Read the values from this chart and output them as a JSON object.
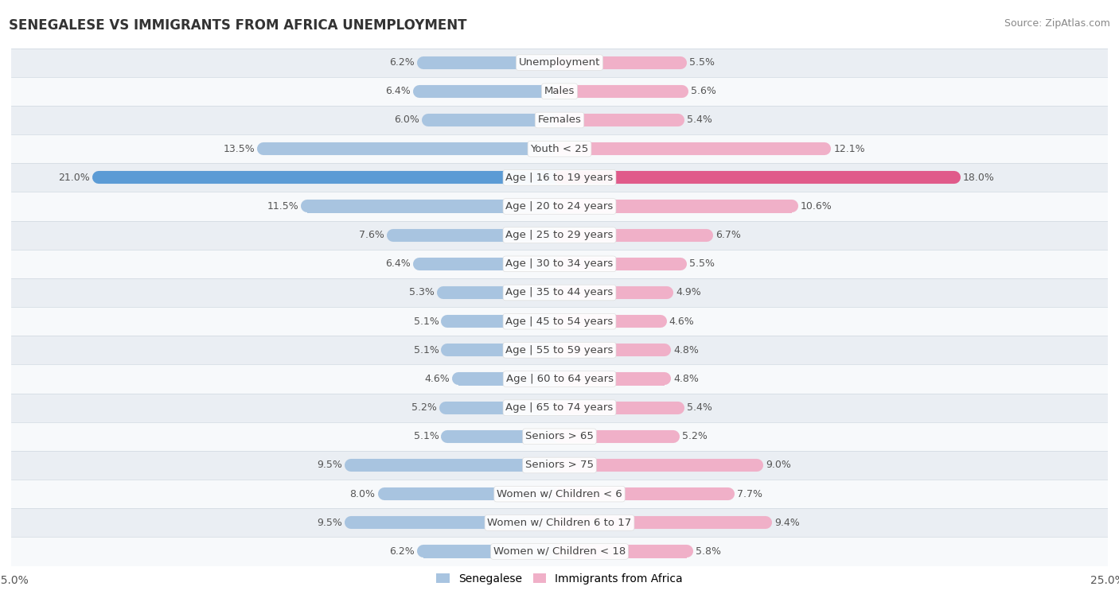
{
  "title": "SENEGALESE VS IMMIGRANTS FROM AFRICA UNEMPLOYMENT",
  "source": "Source: ZipAtlas.com",
  "categories": [
    "Unemployment",
    "Males",
    "Females",
    "Youth < 25",
    "Age | 16 to 19 years",
    "Age | 20 to 24 years",
    "Age | 25 to 29 years",
    "Age | 30 to 34 years",
    "Age | 35 to 44 years",
    "Age | 45 to 54 years",
    "Age | 55 to 59 years",
    "Age | 60 to 64 years",
    "Age | 65 to 74 years",
    "Seniors > 65",
    "Seniors > 75",
    "Women w/ Children < 6",
    "Women w/ Children 6 to 17",
    "Women w/ Children < 18"
  ],
  "senegalese": [
    6.2,
    6.4,
    6.0,
    13.5,
    21.0,
    11.5,
    7.6,
    6.4,
    5.3,
    5.1,
    5.1,
    4.6,
    5.2,
    5.1,
    9.5,
    8.0,
    9.5,
    6.2
  ],
  "immigrants": [
    5.5,
    5.6,
    5.4,
    12.1,
    18.0,
    10.6,
    6.7,
    5.5,
    4.9,
    4.6,
    4.8,
    4.8,
    5.4,
    5.2,
    9.0,
    7.7,
    9.4,
    5.8
  ],
  "senegalese_color": "#a8c4e0",
  "immigrants_color": "#f0b0c8",
  "highlight_senegalese_color": "#5b9bd5",
  "highlight_immigrants_color": "#e05a8a",
  "row_bg_light": "#eaeef3",
  "row_bg_white": "#f7f9fb",
  "x_max": 25.0,
  "legend_senegalese": "Senegalese",
  "legend_immigrants": "Immigrants from Africa",
  "bar_height": 0.45,
  "highlight_row": 4,
  "label_fontsize": 9.5,
  "value_fontsize": 9.0
}
